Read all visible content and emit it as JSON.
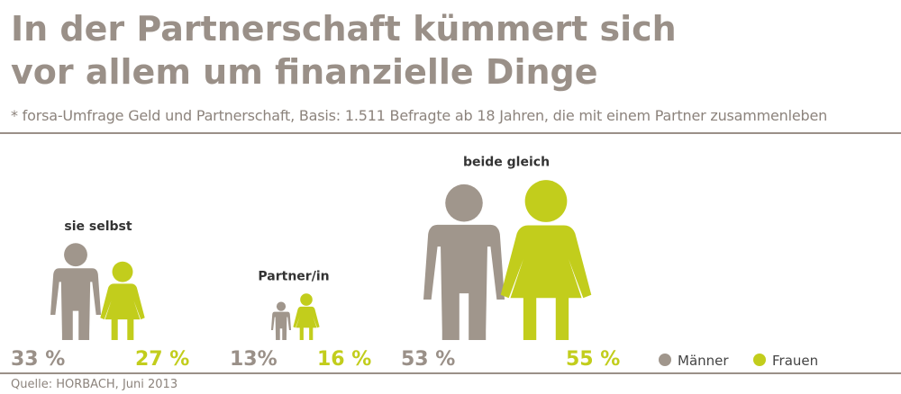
{
  "colors": {
    "men": "#a0968c",
    "women": "#c2cd1c",
    "text": "#9a9088"
  },
  "title_lines": [
    "In der Partnerschaft kümmert sich",
    "vor allem um finanzielle Dinge"
  ],
  "subtitle": "* forsa-Umfrage Geld und Partnerschaft, Basis: 1.511 Befragte ab 18 Jahren, die mit einem Partner zusammenleben",
  "source": "Quelle: HORBACH, Juni 2013",
  "chart_data": {
    "type": "pictograph",
    "title": "In der Partnerschaft kümmert sich vor allem um finanzielle Dinge",
    "categories": [
      "sie selbst",
      "Partner/in",
      "beide gleich"
    ],
    "series": [
      {
        "name": "Männer",
        "values": [
          33,
          13,
          53
        ],
        "labels": [
          "33 %",
          "13%",
          "53 %"
        ]
      },
      {
        "name": "Frauen",
        "values": [
          27,
          16,
          55
        ],
        "labels": [
          "27 %",
          "16 %",
          "55 %"
        ]
      }
    ],
    "unit": "%",
    "legend": [
      "Männer",
      "Frauen"
    ],
    "legend_position": "bottom-right"
  }
}
